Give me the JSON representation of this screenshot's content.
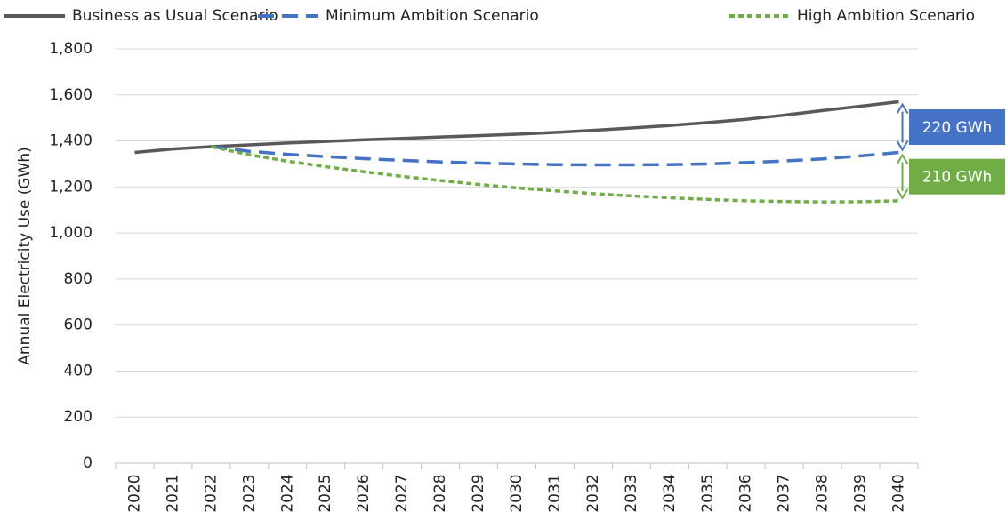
{
  "chart_data": {
    "type": "line",
    "y_label": "Annual Electricity Use (GWh)",
    "categories": [
      "2020",
      "2021",
      "2022",
      "2023",
      "2024",
      "2025",
      "2026",
      "2027",
      "2028",
      "2029",
      "2030",
      "2031",
      "2032",
      "2033",
      "2034",
      "2035",
      "2036",
      "2037",
      "2038",
      "2039",
      "2040"
    ],
    "series": [
      {
        "name": "Business as Usual Scenario",
        "color": "#595959",
        "values": [
          1350,
          1365,
          1375,
          1383,
          1391,
          1398,
          1405,
          1411,
          1417,
          1423,
          1429,
          1437,
          1446,
          1456,
          1467,
          1480,
          1494,
          1512,
          1532,
          1551,
          1570
        ]
      },
      {
        "name": "Minimum Ambition Scenario",
        "color": "#4472c4",
        "values": [
          null,
          null,
          1375,
          1355,
          1342,
          1332,
          1323,
          1316,
          1309,
          1304,
          1300,
          1297,
          1296,
          1296,
          1297,
          1300,
          1306,
          1313,
          1322,
          1335,
          1350
        ]
      },
      {
        "name": "High Ambition Scenario",
        "color": "#70ad47",
        "values": [
          null,
          null,
          1375,
          1340,
          1312,
          1288,
          1266,
          1246,
          1228,
          1211,
          1196,
          1183,
          1171,
          1161,
          1153,
          1146,
          1140,
          1137,
          1135,
          1136,
          1140
        ]
      }
    ],
    "annotations": [
      {
        "text": "220 GWh",
        "color": "#4472c4"
      },
      {
        "text": "210 GWh",
        "color": "#70ad47"
      }
    ],
    "ylim": [
      0,
      1800
    ],
    "yticks": [
      0,
      200,
      400,
      600,
      800,
      {
        "value": 1000,
        "label": "1,000"
      },
      {
        "value": 1200,
        "label": "1,200"
      },
      {
        "value": 1400,
        "label": "1,400"
      },
      {
        "value": 1600,
        "label": "1,600"
      },
      {
        "value": 1800,
        "label": "1,800"
      }
    ],
    "grid": true,
    "legend": "top"
  }
}
